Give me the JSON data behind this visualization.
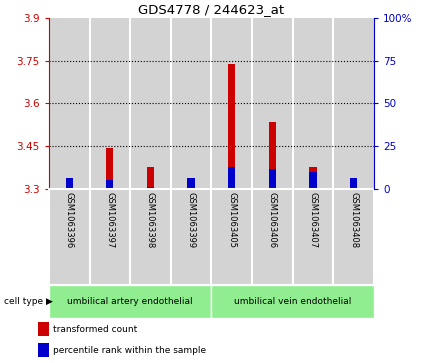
{
  "title": "GDS4778 / 244623_at",
  "samples": [
    "GSM1063396",
    "GSM1063397",
    "GSM1063398",
    "GSM1063399",
    "GSM1063405",
    "GSM1063406",
    "GSM1063407",
    "GSM1063408"
  ],
  "red_values": [
    3.322,
    3.445,
    3.375,
    3.305,
    3.74,
    3.535,
    3.375,
    3.315
  ],
  "blue_values": [
    3.338,
    3.332,
    3.305,
    3.338,
    3.375,
    3.37,
    3.36,
    3.338
  ],
  "baseline": 3.3,
  "ylim_left": [
    3.3,
    3.9
  ],
  "yticks_left": [
    3.3,
    3.45,
    3.6,
    3.75,
    3.9
  ],
  "ytick_labels_left": [
    "3.3",
    "3.45",
    "3.6",
    "3.75",
    "3.9"
  ],
  "yticks_right": [
    0,
    25,
    50,
    75,
    100
  ],
  "ytick_labels_right": [
    "0",
    "25",
    "50",
    "75",
    "100%"
  ],
  "grid_yticks": [
    3.45,
    3.6,
    3.75
  ],
  "cell_type_groups": [
    {
      "label": "umbilical artery endothelial",
      "start": 0,
      "end": 3
    },
    {
      "label": "umbilical vein endothelial",
      "start": 4,
      "end": 7
    }
  ],
  "cell_type_label": "cell type ▶",
  "legend_items": [
    {
      "label": "transformed count",
      "color": "#cc0000"
    },
    {
      "label": "percentile rank within the sample",
      "color": "#0000cc"
    }
  ],
  "bar_bg_color": "#d3d3d3",
  "green_color": "#90ee90",
  "plot_bg_color": "#ffffff",
  "red_color": "#cc0000",
  "blue_color": "#0000cc",
  "left_axis_color": "#cc0000",
  "right_axis_color": "#0000cc",
  "bar_width": 0.18
}
